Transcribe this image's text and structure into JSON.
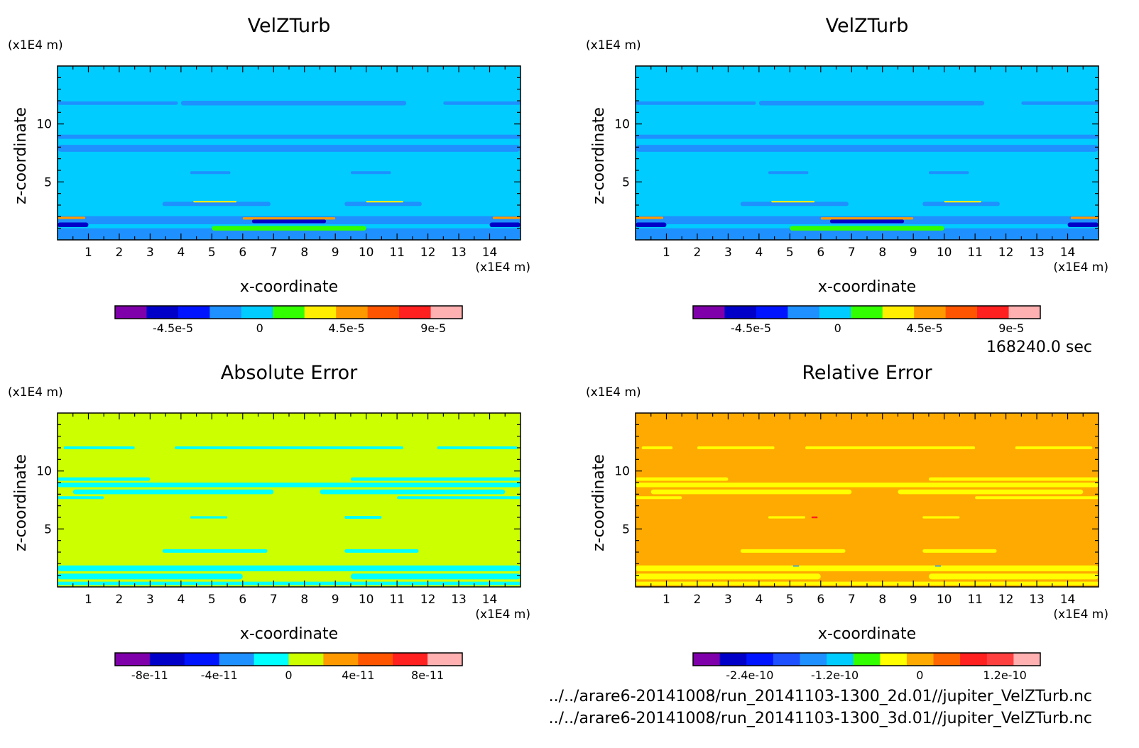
{
  "time_label": "168240.0 sec",
  "file_paths": [
    "../../arare6-20141008/run_20141103-1300_2d.01//jupiter_VelZTurb.nc",
    "../../arare6-20141008/run_20141103-1300_3d.01//jupiter_VelZTurb.nc"
  ],
  "chart_data": [
    {
      "type": "heatmap",
      "title": "VelZTurb",
      "xlabel": "x-coordinate",
      "ylabel": "z-coordinate",
      "x_unit": "(x1E4 m)",
      "y_unit": "(x1E4 m)",
      "xlim": [
        0,
        15
      ],
      "ylim": [
        0,
        15
      ],
      "x_ticks": [
        1,
        2,
        3,
        4,
        5,
        6,
        7,
        8,
        9,
        10,
        11,
        12,
        13,
        14
      ],
      "y_ticks": [
        5,
        10
      ],
      "background_color": "#00ccff",
      "bands": [
        {
          "z": 11.8,
          "half": 0.15,
          "x": [
            0,
            3.9
          ],
          "color": "#1e90ff"
        },
        {
          "z": 11.8,
          "half": 0.2,
          "x": [
            4,
            11.3
          ],
          "color": "#1e90ff"
        },
        {
          "z": 11.8,
          "half": 0.15,
          "x": [
            12.5,
            15
          ],
          "color": "#1e90ff"
        },
        {
          "z": 8.9,
          "half": 0.18,
          "x": [
            0,
            15
          ],
          "color": "#1e90ff"
        },
        {
          "z": 7.9,
          "half": 0.3,
          "x": [
            0,
            15
          ],
          "color": "#1e90ff"
        },
        {
          "z": 5.8,
          "half": 0.12,
          "x": [
            4.3,
            5.6
          ],
          "color": "#1e90ff"
        },
        {
          "z": 5.8,
          "half": 0.12,
          "x": [
            9.5,
            10.8
          ],
          "color": "#1e90ff"
        },
        {
          "z": 3.1,
          "half": 0.18,
          "x": [
            3.4,
            6.9
          ],
          "color": "#1e90ff"
        },
        {
          "z": 3.1,
          "half": 0.18,
          "x": [
            9.3,
            11.8
          ],
          "color": "#1e90ff"
        },
        {
          "z": 1.7,
          "half": 0.35,
          "x": [
            0,
            15
          ],
          "color": "#1e90ff"
        },
        {
          "z": 0.5,
          "half": 0.5,
          "x": [
            0,
            15
          ],
          "color": "#1e90ff"
        },
        {
          "z": 1.0,
          "half": 0.2,
          "x": [
            5,
            10
          ],
          "color": "#32ff00"
        },
        {
          "z": 1.85,
          "half": 0.1,
          "x": [
            6,
            9
          ],
          "color": "#ff9900"
        },
        {
          "z": 1.6,
          "half": 0.15,
          "x": [
            6.3,
            8.7
          ],
          "color": "#0000c8"
        },
        {
          "z": 1.3,
          "half": 0.2,
          "x": [
            0,
            1
          ],
          "color": "#0000c8"
        },
        {
          "z": 1.3,
          "half": 0.2,
          "x": [
            14,
            15
          ],
          "color": "#0000c8"
        },
        {
          "z": 1.9,
          "half": 0.1,
          "x": [
            0,
            0.9
          ],
          "color": "#ff9900"
        },
        {
          "z": 1.9,
          "half": 0.1,
          "x": [
            14.1,
            15
          ],
          "color": "#ff9900"
        },
        {
          "z": 3.3,
          "half": 0.07,
          "x": [
            4.4,
            5.8
          ],
          "color": "#ffee00"
        },
        {
          "z": 3.3,
          "half": 0.07,
          "x": [
            10,
            11.2
          ],
          "color": "#ffee00"
        }
      ],
      "colorbar": {
        "colors": [
          "#7f00aa",
          "#0000c8",
          "#0014ff",
          "#1e90ff",
          "#00ccff",
          "#32ff00",
          "#ffee00",
          "#ff9900",
          "#ff5500",
          "#ff2020",
          "#ffb0b0"
        ],
        "tick_labels": [
          "-4.5e-5",
          "0",
          "4.5e-5",
          "9e-5"
        ],
        "tick_values": [
          -4.5e-05,
          0,
          4.5e-05,
          9e-05
        ],
        "range": [
          -7.5e-05,
          0.000105
        ]
      }
    },
    {
      "type": "heatmap",
      "title": "VelZTurb",
      "xlabel": "x-coordinate",
      "ylabel": "z-coordinate",
      "x_unit": "(x1E4 m)",
      "y_unit": "(x1E4 m)",
      "xlim": [
        0,
        15
      ],
      "ylim": [
        0,
        15
      ],
      "x_ticks": [
        1,
        2,
        3,
        4,
        5,
        6,
        7,
        8,
        9,
        10,
        11,
        12,
        13,
        14
      ],
      "y_ticks": [
        5,
        10
      ],
      "background_color": "#00ccff",
      "bands": [
        {
          "z": 11.8,
          "half": 0.15,
          "x": [
            0,
            3.9
          ],
          "color": "#1e90ff"
        },
        {
          "z": 11.8,
          "half": 0.2,
          "x": [
            4,
            11.3
          ],
          "color": "#1e90ff"
        },
        {
          "z": 11.8,
          "half": 0.15,
          "x": [
            12.5,
            15
          ],
          "color": "#1e90ff"
        },
        {
          "z": 8.9,
          "half": 0.18,
          "x": [
            0,
            15
          ],
          "color": "#1e90ff"
        },
        {
          "z": 7.9,
          "half": 0.3,
          "x": [
            0,
            15
          ],
          "color": "#1e90ff"
        },
        {
          "z": 5.8,
          "half": 0.12,
          "x": [
            4.3,
            5.6
          ],
          "color": "#1e90ff"
        },
        {
          "z": 5.8,
          "half": 0.12,
          "x": [
            9.5,
            10.8
          ],
          "color": "#1e90ff"
        },
        {
          "z": 3.1,
          "half": 0.18,
          "x": [
            3.4,
            6.9
          ],
          "color": "#1e90ff"
        },
        {
          "z": 3.1,
          "half": 0.18,
          "x": [
            9.3,
            11.8
          ],
          "color": "#1e90ff"
        },
        {
          "z": 1.7,
          "half": 0.35,
          "x": [
            0,
            15
          ],
          "color": "#1e90ff"
        },
        {
          "z": 0.5,
          "half": 0.5,
          "x": [
            0,
            15
          ],
          "color": "#1e90ff"
        },
        {
          "z": 1.0,
          "half": 0.2,
          "x": [
            5,
            10
          ],
          "color": "#32ff00"
        },
        {
          "z": 1.85,
          "half": 0.1,
          "x": [
            6,
            9
          ],
          "color": "#ff9900"
        },
        {
          "z": 1.6,
          "half": 0.15,
          "x": [
            6.3,
            8.7
          ],
          "color": "#0000c8"
        },
        {
          "z": 1.3,
          "half": 0.2,
          "x": [
            0,
            1
          ],
          "color": "#0000c8"
        },
        {
          "z": 1.3,
          "half": 0.2,
          "x": [
            14,
            15
          ],
          "color": "#0000c8"
        },
        {
          "z": 1.9,
          "half": 0.1,
          "x": [
            0,
            0.9
          ],
          "color": "#ff9900"
        },
        {
          "z": 1.9,
          "half": 0.1,
          "x": [
            14.1,
            15
          ],
          "color": "#ff9900"
        },
        {
          "z": 3.3,
          "half": 0.07,
          "x": [
            4.4,
            5.8
          ],
          "color": "#ffee00"
        },
        {
          "z": 3.3,
          "half": 0.07,
          "x": [
            10,
            11.2
          ],
          "color": "#ffee00"
        }
      ],
      "colorbar": {
        "colors": [
          "#7f00aa",
          "#0000c8",
          "#0014ff",
          "#1e90ff",
          "#00ccff",
          "#32ff00",
          "#ffee00",
          "#ff9900",
          "#ff5500",
          "#ff2020",
          "#ffb0b0"
        ],
        "tick_labels": [
          "-4.5e-5",
          "0",
          "4.5e-5",
          "9e-5"
        ],
        "tick_values": [
          -4.5e-05,
          0,
          4.5e-05,
          9e-05
        ],
        "range": [
          -7.5e-05,
          0.000105
        ]
      }
    },
    {
      "type": "heatmap",
      "title": "Absolute Error",
      "xlabel": "x-coordinate",
      "ylabel": "z-coordinate",
      "x_unit": "(x1E4 m)",
      "y_unit": "(x1E4 m)",
      "xlim": [
        0,
        15
      ],
      "ylim": [
        0,
        15
      ],
      "x_ticks": [
        1,
        2,
        3,
        4,
        5,
        6,
        7,
        8,
        9,
        10,
        11,
        12,
        13,
        14
      ],
      "y_ticks": [
        5,
        10
      ],
      "background_color": "#ccff00",
      "bands": [
        {
          "z": 12.0,
          "half": 0.12,
          "x": [
            0.2,
            2.5
          ],
          "color": "#00ffff"
        },
        {
          "z": 12.0,
          "half": 0.12,
          "x": [
            3.8,
            11.2
          ],
          "color": "#00ffff"
        },
        {
          "z": 12.0,
          "half": 0.12,
          "x": [
            12.3,
            14.9
          ],
          "color": "#00ffff"
        },
        {
          "z": 9.3,
          "half": 0.15,
          "x": [
            0,
            3
          ],
          "color": "#00ffff"
        },
        {
          "z": 9.3,
          "half": 0.15,
          "x": [
            9.5,
            15
          ],
          "color": "#00ffff"
        },
        {
          "z": 8.8,
          "half": 0.2,
          "x": [
            0,
            15
          ],
          "color": "#00ffff"
        },
        {
          "z": 8.2,
          "half": 0.2,
          "x": [
            0.5,
            7
          ],
          "color": "#00ffff"
        },
        {
          "z": 8.2,
          "half": 0.2,
          "x": [
            8.5,
            14.5
          ],
          "color": "#00ffff"
        },
        {
          "z": 7.7,
          "half": 0.12,
          "x": [
            0,
            1.5
          ],
          "color": "#00ffff"
        },
        {
          "z": 7.7,
          "half": 0.12,
          "x": [
            11,
            15
          ],
          "color": "#00ffff"
        },
        {
          "z": 6.0,
          "half": 0.1,
          "x": [
            4.3,
            5.5
          ],
          "color": "#00ffff"
        },
        {
          "z": 6.0,
          "half": 0.12,
          "x": [
            9.3,
            10.5
          ],
          "color": "#00ffff"
        },
        {
          "z": 3.1,
          "half": 0.15,
          "x": [
            3.4,
            6.8
          ],
          "color": "#00ffff"
        },
        {
          "z": 3.1,
          "half": 0.15,
          "x": [
            9.3,
            11.7
          ],
          "color": "#00ffff"
        },
        {
          "z": 1.6,
          "half": 0.25,
          "x": [
            0,
            15
          ],
          "color": "#00ffff"
        },
        {
          "z": 0.9,
          "half": 0.25,
          "x": [
            0,
            6
          ],
          "color": "#00ffff"
        },
        {
          "z": 0.9,
          "half": 0.25,
          "x": [
            9.5,
            15
          ],
          "color": "#00ffff"
        },
        {
          "z": 0.3,
          "half": 0.15,
          "x": [
            0,
            15
          ],
          "color": "#00ffff"
        }
      ],
      "colorbar": {
        "colors": [
          "#7f00aa",
          "#0000c8",
          "#0014ff",
          "#1e90ff",
          "#00ffff",
          "#ccff00",
          "#ff9900",
          "#ff5500",
          "#ff2020",
          "#ffb0b0"
        ],
        "tick_labels": [
          "-8e-11",
          "-4e-11",
          "0",
          "4e-11",
          "8e-11"
        ],
        "tick_values": [
          -8e-11,
          -4e-11,
          0,
          4e-11,
          8e-11
        ],
        "range": [
          -1e-10,
          1e-10
        ]
      }
    },
    {
      "type": "heatmap",
      "title": "Relative Error",
      "xlabel": "x-coordinate",
      "ylabel": "z-coordinate",
      "x_unit": "(x1E4 m)",
      "y_unit": "(x1E4 m)",
      "xlim": [
        0,
        15
      ],
      "ylim": [
        0,
        15
      ],
      "x_ticks": [
        1,
        2,
        3,
        4,
        5,
        6,
        7,
        8,
        9,
        10,
        11,
        12,
        13,
        14
      ],
      "y_ticks": [
        5,
        10
      ],
      "background_color": "#ffaa00",
      "bands": [
        {
          "z": 12.0,
          "half": 0.12,
          "x": [
            0.2,
            1.2
          ],
          "color": "#ffff00"
        },
        {
          "z": 12.0,
          "half": 0.12,
          "x": [
            2,
            4.5
          ],
          "color": "#ffff00"
        },
        {
          "z": 12.0,
          "half": 0.12,
          "x": [
            5.5,
            11
          ],
          "color": "#ffff00"
        },
        {
          "z": 12.0,
          "half": 0.12,
          "x": [
            12.3,
            14.8
          ],
          "color": "#ffff00"
        },
        {
          "z": 9.3,
          "half": 0.15,
          "x": [
            0,
            3
          ],
          "color": "#ffff00"
        },
        {
          "z": 9.3,
          "half": 0.15,
          "x": [
            9.5,
            15
          ],
          "color": "#ffff00"
        },
        {
          "z": 8.8,
          "half": 0.2,
          "x": [
            0,
            15
          ],
          "color": "#ffff00"
        },
        {
          "z": 8.2,
          "half": 0.2,
          "x": [
            0.5,
            7
          ],
          "color": "#ffff00"
        },
        {
          "z": 8.2,
          "half": 0.2,
          "x": [
            8.5,
            14.5
          ],
          "color": "#ffff00"
        },
        {
          "z": 7.7,
          "half": 0.12,
          "x": [
            0,
            1.5
          ],
          "color": "#ffff00"
        },
        {
          "z": 7.7,
          "half": 0.12,
          "x": [
            11,
            15
          ],
          "color": "#ffff00"
        },
        {
          "z": 6.0,
          "half": 0.1,
          "x": [
            4.3,
            5.5
          ],
          "color": "#ffff00"
        },
        {
          "z": 6.0,
          "half": 0.1,
          "x": [
            9.3,
            10.5
          ],
          "color": "#ffff00"
        },
        {
          "z": 6.0,
          "half": 0.08,
          "x": [
            5.7,
            5.9
          ],
          "color": "#ff2020"
        },
        {
          "z": 3.1,
          "half": 0.15,
          "x": [
            3.4,
            6.8
          ],
          "color": "#ffff00"
        },
        {
          "z": 3.1,
          "half": 0.15,
          "x": [
            9.3,
            11.7
          ],
          "color": "#ffff00"
        },
        {
          "z": 1.6,
          "half": 0.25,
          "x": [
            0,
            15
          ],
          "color": "#ffff00"
        },
        {
          "z": 0.9,
          "half": 0.25,
          "x": [
            0,
            6
          ],
          "color": "#ffff00"
        },
        {
          "z": 0.9,
          "half": 0.25,
          "x": [
            9.5,
            15
          ],
          "color": "#ffff00"
        },
        {
          "z": 0.3,
          "half": 0.15,
          "x": [
            0,
            15
          ],
          "color": "#ffff00"
        },
        {
          "z": 1.8,
          "half": 0.05,
          "x": [
            5.1,
            5.3
          ],
          "color": "#1e90ff"
        },
        {
          "z": 1.8,
          "half": 0.05,
          "x": [
            9.7,
            9.9
          ],
          "color": "#1e90ff"
        }
      ],
      "colorbar": {
        "colors": [
          "#7f00aa",
          "#0000c8",
          "#0014ff",
          "#1e50ff",
          "#1e90ff",
          "#00ccff",
          "#32ff00",
          "#ffff00",
          "#ffaa00",
          "#ff6600",
          "#ff2020",
          "#ff4040",
          "#ffb0b0"
        ],
        "tick_labels": [
          "-2.4e-10",
          "-1.2e-10",
          "0",
          "1.2e-10"
        ],
        "tick_values": [
          -2.4e-10,
          -1.2e-10,
          0,
          1.2e-10
        ],
        "range": [
          -3.2e-10,
          1.7e-10
        ]
      }
    }
  ]
}
